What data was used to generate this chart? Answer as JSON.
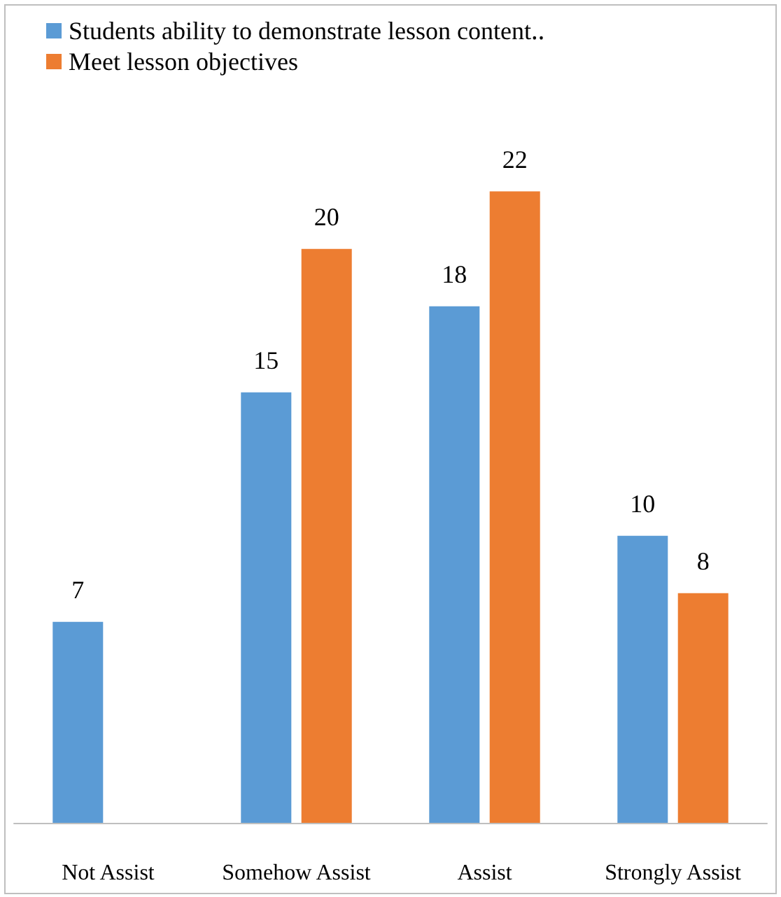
{
  "chart_data": {
    "type": "bar",
    "categories": [
      "Not Assist",
      "Somehow Assist",
      "Assist",
      "Strongly Assist"
    ],
    "series": [
      {
        "name": "Students ability to demonstrate lesson content‥",
        "color": "#5b9bd5",
        "values": [
          7,
          15,
          18,
          10
        ]
      },
      {
        "name": "Meet lesson objectives",
        "color": "#ed7d31",
        "values": [
          null,
          20,
          22,
          8
        ]
      }
    ],
    "data_labels": true,
    "legend": "top left"
  }
}
